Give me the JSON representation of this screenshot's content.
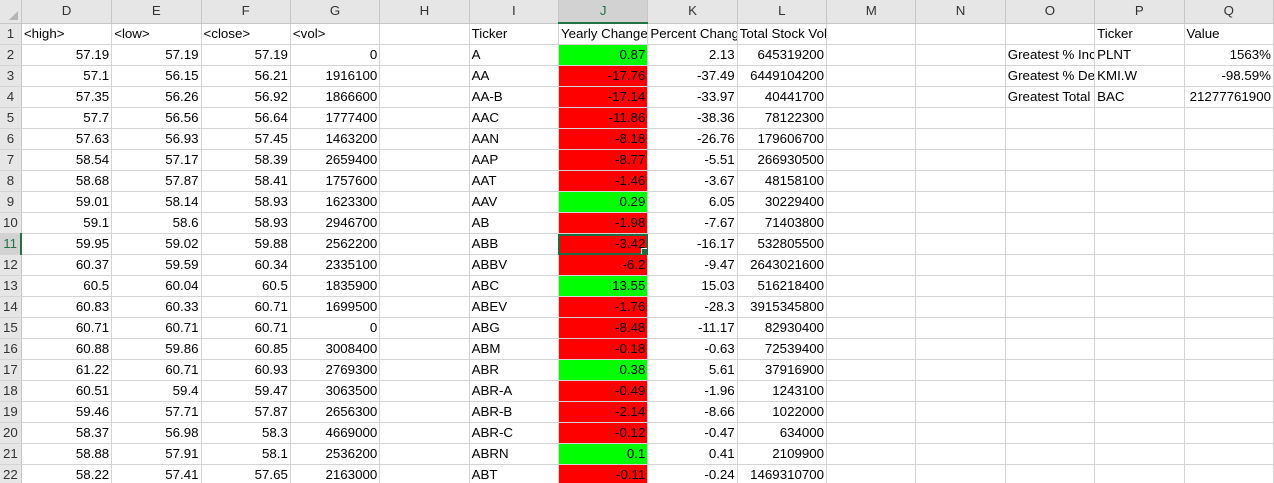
{
  "columns": [
    "D",
    "E",
    "F",
    "G",
    "H",
    "I",
    "J",
    "K",
    "L",
    "M",
    "N",
    "O",
    "P",
    "Q"
  ],
  "selected_column": "J",
  "selected_row": "11",
  "header_row": {
    "D": "<high>",
    "E": "<low>",
    "F": "<close>",
    "G": "<vol>",
    "I": "Ticker",
    "J": "Yearly Change",
    "K": "Percent Change",
    "L": "Total Stock Volume",
    "P": "Ticker",
    "Q": "Value"
  },
  "rows": [
    {
      "n": "2",
      "D": "57.19",
      "E": "57.19",
      "F": "57.19",
      "G": "0",
      "I": "A",
      "J": "0.87",
      "K": "2.13",
      "L": "645319200",
      "O": "Greatest % Increase",
      "P": "PLNT",
      "Q": "1563%"
    },
    {
      "n": "3",
      "D": "57.1",
      "E": "56.15",
      "F": "56.21",
      "G": "1916100",
      "I": "AA",
      "J": "-17.76",
      "K": "-37.49",
      "L": "6449104200",
      "O": "Greatest % Decrease",
      "P": "KMI.W",
      "Q": "-98.59%"
    },
    {
      "n": "4",
      "D": "57.35",
      "E": "56.26",
      "F": "56.92",
      "G": "1866600",
      "I": "AA-B",
      "J": "-17.14",
      "K": "-33.97",
      "L": "40441700",
      "O": "Greatest Total Volume",
      "P": "BAC",
      "Q": "21277761900"
    },
    {
      "n": "5",
      "D": "57.7",
      "E": "56.56",
      "F": "56.64",
      "G": "1777400",
      "I": "AAC",
      "J": "-11.86",
      "K": "-38.36",
      "L": "78122300"
    },
    {
      "n": "6",
      "D": "57.63",
      "E": "56.93",
      "F": "57.45",
      "G": "1463200",
      "I": "AAN",
      "J": "-8.18",
      "K": "-26.76",
      "L": "179606700"
    },
    {
      "n": "7",
      "D": "58.54",
      "E": "57.17",
      "F": "58.39",
      "G": "2659400",
      "I": "AAP",
      "J": "-8.77",
      "K": "-5.51",
      "L": "266930500"
    },
    {
      "n": "8",
      "D": "58.68",
      "E": "57.87",
      "F": "58.41",
      "G": "1757600",
      "I": "AAT",
      "J": "-1.46",
      "K": "-3.67",
      "L": "48158100"
    },
    {
      "n": "9",
      "D": "59.01",
      "E": "58.14",
      "F": "58.93",
      "G": "1623300",
      "I": "AAV",
      "J": "0.29",
      "K": "6.05",
      "L": "30229400"
    },
    {
      "n": "10",
      "D": "59.1",
      "E": "58.6",
      "F": "58.93",
      "G": "2946700",
      "I": "AB",
      "J": "-1.98",
      "K": "-7.67",
      "L": "71403800"
    },
    {
      "n": "11",
      "D": "59.95",
      "E": "59.02",
      "F": "59.88",
      "G": "2562200",
      "I": "ABB",
      "J": "-3.42",
      "K": "-16.17",
      "L": "532805500"
    },
    {
      "n": "12",
      "D": "60.37",
      "E": "59.59",
      "F": "60.34",
      "G": "2335100",
      "I": "ABBV",
      "J": "-6.2",
      "K": "-9.47",
      "L": "2643021600"
    },
    {
      "n": "13",
      "D": "60.5",
      "E": "60.04",
      "F": "60.5",
      "G": "1835900",
      "I": "ABC",
      "J": "13.55",
      "K": "15.03",
      "L": "516218400"
    },
    {
      "n": "14",
      "D": "60.83",
      "E": "60.33",
      "F": "60.71",
      "G": "1699500",
      "I": "ABEV",
      "J": "-1.76",
      "K": "-28.3",
      "L": "3915345800"
    },
    {
      "n": "15",
      "D": "60.71",
      "E": "60.71",
      "F": "60.71",
      "G": "0",
      "I": "ABG",
      "J": "-8.48",
      "K": "-11.17",
      "L": "82930400"
    },
    {
      "n": "16",
      "D": "60.88",
      "E": "59.86",
      "F": "60.85",
      "G": "3008400",
      "I": "ABM",
      "J": "-0.18",
      "K": "-0.63",
      "L": "72539400"
    },
    {
      "n": "17",
      "D": "61.22",
      "E": "60.71",
      "F": "60.93",
      "G": "2769300",
      "I": "ABR",
      "J": "0.38",
      "K": "5.61",
      "L": "37916900"
    },
    {
      "n": "18",
      "D": "60.51",
      "E": "59.4",
      "F": "59.47",
      "G": "3063500",
      "I": "ABR-A",
      "J": "-0.49",
      "K": "-1.96",
      "L": "1243100"
    },
    {
      "n": "19",
      "D": "59.46",
      "E": "57.71",
      "F": "57.87",
      "G": "2656300",
      "I": "ABR-B",
      "J": "-2.14",
      "K": "-8.66",
      "L": "1022000"
    },
    {
      "n": "20",
      "D": "58.37",
      "E": "56.98",
      "F": "58.3",
      "G": "4669000",
      "I": "ABR-C",
      "J": "-0.12",
      "K": "-0.47",
      "L": "634000"
    },
    {
      "n": "21",
      "D": "58.88",
      "E": "57.91",
      "F": "58.1",
      "G": "2536200",
      "I": "ABRN",
      "J": "0.1",
      "K": "0.41",
      "L": "2109900"
    },
    {
      "n": "22",
      "D": "58.22",
      "E": "57.41",
      "F": "57.65",
      "G": "2163000",
      "I": "ABT",
      "J": "-0.11",
      "K": "-0.24",
      "L": "1469310700"
    }
  ],
  "colors": {
    "positive": "#00ff00",
    "negative": "#ff0000",
    "selection": "#1e6b3e"
  }
}
